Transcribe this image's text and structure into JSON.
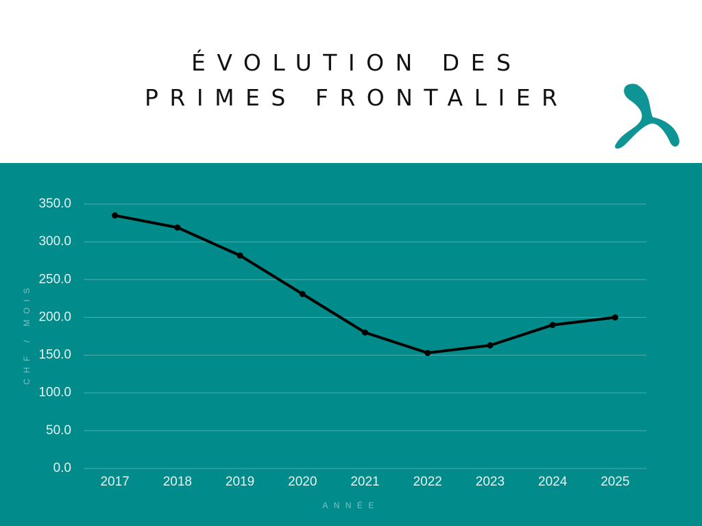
{
  "chart_data": {
    "type": "line",
    "title": "ÉVOLUTION DES PRIMES FRONTALIER",
    "x_label": "ANNÉE",
    "y_label": "CHF / MOIS",
    "categories": [
      "2017",
      "2018",
      "2019",
      "2020",
      "2021",
      "2022",
      "2023",
      "2024",
      "2025"
    ],
    "values": [
      335,
      319,
      282,
      231,
      180,
      153,
      163,
      190,
      200
    ],
    "color": "#000000",
    "ylim": [
      0,
      350
    ],
    "yticks": [
      {
        "value": 0,
        "label": "0.0"
      },
      {
        "value": 50,
        "label": "50.0"
      },
      {
        "value": 100,
        "label": "100.0"
      },
      {
        "value": 150,
        "label": "150.0"
      },
      {
        "value": 200,
        "label": "200.0"
      },
      {
        "value": 250,
        "label": "250.0"
      },
      {
        "value": 300,
        "label": "300.0"
      },
      {
        "value": 350,
        "label": "350.0"
      }
    ],
    "grid": true
  }
}
